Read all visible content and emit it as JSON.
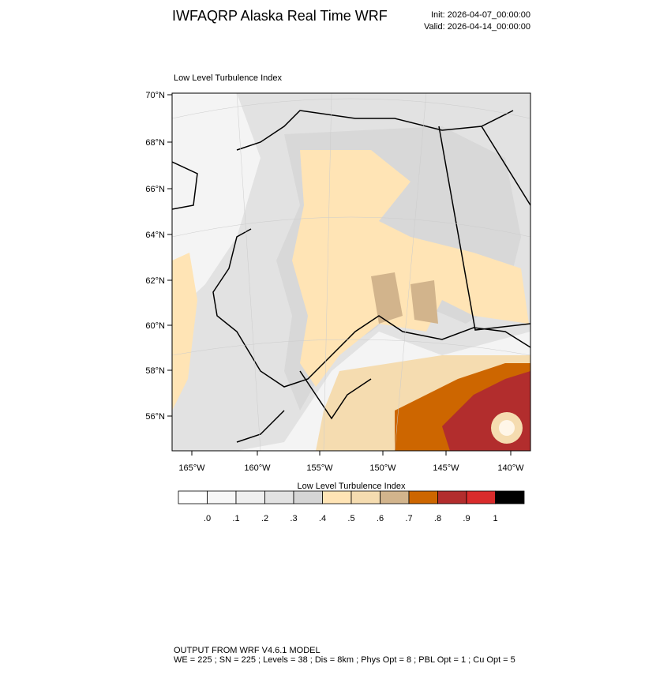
{
  "header": {
    "title": "IWFAQRP Alaska Real Time WRF",
    "init": "Init: 2026-04-07_00:00:00",
    "valid": "Valid: 2026-04-14_00:00:00"
  },
  "map": {
    "title": "Low Level Turbulence Index",
    "lat_labels": [
      "70°N",
      "68°N",
      "66°N",
      "64°N",
      "62°N",
      "60°N",
      "58°N",
      "56°N"
    ],
    "lon_labels": [
      "165°W",
      "160°W",
      "155°W",
      "150°W",
      "145°W",
      "140°W"
    ]
  },
  "colorbar": {
    "title": "Low Level Turbulence Index",
    "colors": [
      "#ffffff",
      "#f7f7f7",
      "#efefef",
      "#e2e2e2",
      "#d5d5d5",
      "#ffe4b5",
      "#f5dcb0",
      "#d2b48c",
      "#cd6600",
      "#b22d2d",
      "#d92b2b",
      "#000000"
    ],
    "labels": [
      ".0",
      ".1",
      ".2",
      ".3",
      ".4",
      ".5",
      ".6",
      ".7",
      ".8",
      ".9",
      "1"
    ]
  },
  "footer": {
    "line1": "OUTPUT FROM WRF V4.6.1 MODEL",
    "line2": "WE = 225 ; SN = 225 ; Levels = 38 ; Dis = 8km ; Phys Opt = 8 ; PBL Opt = 1 ; Cu Opt = 5"
  }
}
